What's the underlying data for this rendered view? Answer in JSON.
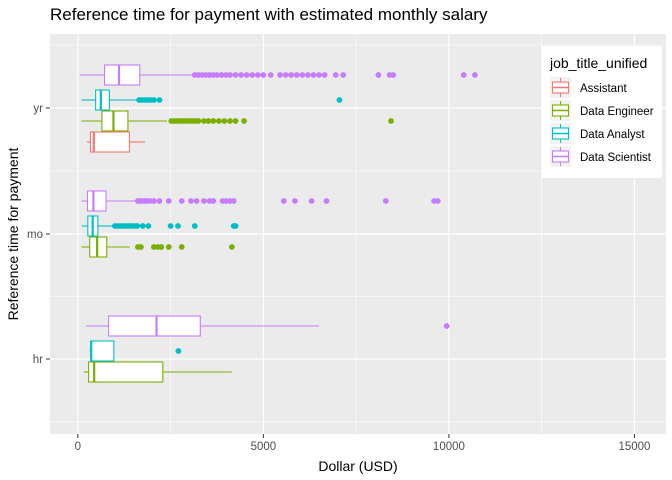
{
  "chart_data": {
    "type": "boxplot",
    "orientation": "horizontal",
    "title": "Reference time for payment with estimated monthly salary",
    "xlabel": "Dollar (USD)",
    "ylabel": "Reference time for payment",
    "xlim": [
      -750,
      15850
    ],
    "x_ticks": [
      0,
      5000,
      10000,
      15000
    ],
    "x_tick_labels": [
      "0",
      "5000",
      "10000",
      "15000"
    ],
    "categories": [
      "hr",
      "mo",
      "yr"
    ],
    "grid": true,
    "legend": {
      "title": "job_title_unified",
      "position": "right-top",
      "entries": [
        "Assistant",
        "Data Engineer",
        "Data Analyst",
        "Data Scientist"
      ]
    },
    "colors": {
      "Assistant": "#F8766D",
      "Data Engineer": "#7CAE00",
      "Data Analyst": "#00BFC4",
      "Data Scientist": "#C77CFF",
      "panel": "#EBEBEB",
      "grid": "#FFFFFF"
    },
    "boxes": [
      {
        "category": "yr",
        "series": "Assistant",
        "whisker_low": 250,
        "q1": 340,
        "median": 430,
        "q3": 1390,
        "whisker_high": 1810,
        "outliers": []
      },
      {
        "category": "yr",
        "series": "Data Engineer",
        "whisker_low": 100,
        "q1": 650,
        "median": 960,
        "q3": 1350,
        "whisker_high": 2400,
        "outliers": [
          2520,
          2600,
          2680,
          2760,
          2840,
          2920,
          3000,
          3080,
          3160,
          3250,
          3400,
          3520,
          3650,
          3800,
          3950,
          4100,
          4250,
          4480,
          8440
        ]
      },
      {
        "category": "yr",
        "series": "Data Analyst",
        "whisker_low": 100,
        "q1": 480,
        "median": 620,
        "q3": 850,
        "whisker_high": 1600,
        "outliers": [
          1650,
          1720,
          1800,
          1880,
          1960,
          2050,
          2200,
          7050
        ]
      },
      {
        "category": "yr",
        "series": "Data Scientist",
        "whisker_low": 50,
        "q1": 720,
        "median": 1110,
        "q3": 1670,
        "whisker_high": 3080,
        "outliers": [
          3150,
          3250,
          3350,
          3450,
          3550,
          3650,
          3750,
          3870,
          3990,
          4100,
          4250,
          4400,
          4550,
          4700,
          4850,
          5000,
          5200,
          5450,
          5600,
          5750,
          5900,
          6050,
          6200,
          6350,
          6500,
          6650,
          6950,
          7150,
          8100,
          8400,
          8500,
          10400,
          10700
        ]
      },
      {
        "category": "mo",
        "series": "Data Engineer",
        "whisker_low": 100,
        "q1": 320,
        "median": 520,
        "q3": 780,
        "whisker_high": 1400,
        "outliers": [
          1620,
          1700,
          2050,
          2150,
          2250,
          2450,
          2800,
          4150
        ]
      },
      {
        "category": "mo",
        "series": "Data Analyst",
        "whisker_low": 100,
        "q1": 270,
        "median": 400,
        "q3": 540,
        "whisker_high": 960,
        "outliers": [
          1000,
          1080,
          1150,
          1220,
          1290,
          1370,
          1440,
          1520,
          1600,
          1750,
          1900,
          2500,
          2700,
          3150,
          4200,
          4250
        ]
      },
      {
        "category": "mo",
        "series": "Data Scientist",
        "whisker_low": 100,
        "q1": 260,
        "median": 420,
        "q3": 760,
        "whisker_high": 1560,
        "outliers": [
          1620,
          1680,
          1740,
          1800,
          1860,
          1940,
          2050,
          2200,
          2450,
          2800,
          3050,
          3200,
          3400,
          3550,
          3650,
          3900,
          4000,
          4100,
          4200,
          5550,
          5850,
          6300,
          6700,
          8300,
          9600,
          9700
        ]
      },
      {
        "category": "hr",
        "series": "Data Engineer",
        "whisker_low": 160,
        "q1": 290,
        "median": 440,
        "q3": 2290,
        "whisker_high": 4150,
        "outliers": []
      },
      {
        "category": "hr",
        "series": "Data Analyst",
        "whisker_low": 320,
        "q1": 350,
        "median": 360,
        "q3": 970,
        "whisker_high": 970,
        "outliers": [
          2710
        ]
      },
      {
        "category": "hr",
        "series": "Data Scientist",
        "whisker_low": 220,
        "q1": 830,
        "median": 2120,
        "q3": 3300,
        "whisker_high": 6500,
        "outliers": [
          9940
        ]
      }
    ]
  }
}
